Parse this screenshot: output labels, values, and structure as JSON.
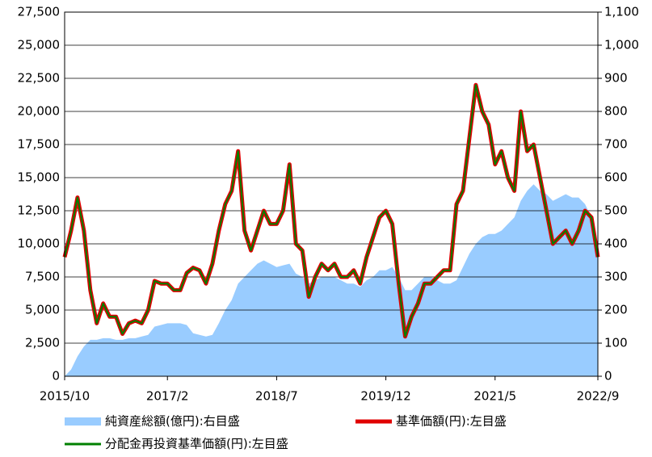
{
  "chart_data": {
    "type": "line",
    "categories": [
      "2015/10",
      null,
      null,
      null,
      null,
      null,
      null,
      null,
      null,
      null,
      null,
      null,
      null,
      null,
      null,
      null,
      "2017/2",
      null,
      null,
      null,
      null,
      null,
      null,
      null,
      null,
      null,
      null,
      null,
      null,
      null,
      null,
      null,
      null,
      "2018/7",
      null,
      null,
      null,
      null,
      null,
      null,
      null,
      null,
      null,
      null,
      null,
      null,
      null,
      null,
      null,
      null,
      "2019/12",
      null,
      null,
      null,
      null,
      null,
      null,
      null,
      null,
      null,
      null,
      null,
      null,
      null,
      null,
      null,
      null,
      "2021/5",
      null,
      null,
      null,
      null,
      null,
      null,
      null,
      null,
      null,
      null,
      null,
      null,
      null,
      null,
      null,
      "2022/9"
    ],
    "series": [
      {
        "name": "純資産総額(億円):右目盛",
        "type": "area",
        "axis": "y2",
        "color": "#99ccff",
        "values": [
          0,
          20,
          60,
          90,
          110,
          110,
          115,
          115,
          110,
          110,
          115,
          115,
          120,
          125,
          150,
          155,
          160,
          160,
          160,
          155,
          130,
          125,
          120,
          125,
          160,
          200,
          230,
          280,
          300,
          320,
          340,
          350,
          340,
          330,
          335,
          340,
          310,
          300,
          280,
          290,
          300,
          300,
          300,
          290,
          280,
          280,
          270,
          290,
          300,
          320,
          320,
          330,
          300,
          260,
          260,
          280,
          300,
          300,
          290,
          280,
          280,
          290,
          330,
          370,
          400,
          420,
          430,
          430,
          440,
          460,
          480,
          530,
          560,
          580,
          560,
          550,
          530,
          540,
          550,
          540,
          540,
          520,
          480,
          400
        ]
      },
      {
        "name": "基準価額(円):左目盛",
        "type": "line",
        "color": "#e00000",
        "values": [
          9000,
          11000,
          13500,
          11000,
          6500,
          4000,
          5500,
          4500,
          4500,
          3200,
          4000,
          4200,
          4000,
          5000,
          7200,
          7000,
          7000,
          6500,
          6500,
          7800,
          8200,
          8000,
          7000,
          8500,
          11000,
          13000,
          14000,
          17000,
          11000,
          9500,
          11000,
          12500,
          11500,
          11500,
          12500,
          16000,
          10000,
          9500,
          6000,
          7500,
          8500,
          8000,
          8500,
          7500,
          7500,
          8000,
          7000,
          9000,
          10500,
          12000,
          12500,
          11500,
          7000,
          3000,
          4500,
          5500,
          7000,
          7000,
          7500,
          8000,
          8000,
          13000,
          14000,
          18000,
          22000,
          20000,
          19000,
          16000,
          17000,
          15000,
          14000,
          20000,
          17000,
          17500,
          15000,
          12500,
          10000,
          10500,
          11000,
          10000,
          11000,
          12500,
          12000,
          9000
        ]
      },
      {
        "name": "分配金再投資基準価額(円):左目盛",
        "type": "line",
        "color": "#008000",
        "values": [
          9000,
          11000,
          13500,
          11000,
          6500,
          4000,
          5500,
          4500,
          4500,
          3200,
          4000,
          4200,
          4000,
          5000,
          7200,
          7000,
          7000,
          6500,
          6500,
          7800,
          8200,
          8000,
          7000,
          8500,
          11000,
          13000,
          14000,
          17000,
          11000,
          9500,
          11000,
          12500,
          11500,
          11500,
          12500,
          16000,
          10000,
          9500,
          6000,
          7500,
          8500,
          8000,
          8500,
          7500,
          7500,
          8000,
          7000,
          9000,
          10500,
          12000,
          12500,
          11500,
          7000,
          3000,
          4500,
          5500,
          7000,
          7000,
          7500,
          8000,
          8000,
          13000,
          14000,
          18000,
          22000,
          20000,
          19000,
          16000,
          17000,
          15000,
          14000,
          20000,
          17000,
          17500,
          15000,
          12500,
          10000,
          10500,
          11000,
          10000,
          11000,
          12500,
          12000,
          9000
        ]
      }
    ],
    "ylim": [
      0,
      27500
    ],
    "yticks": [
      0,
      {
        "value": 2500,
        "label": "2,500"
      },
      {
        "value": 5000,
        "label": "5,000"
      },
      {
        "value": 7500,
        "label": "7,500"
      },
      {
        "value": 10000,
        "label": "10,000"
      },
      {
        "value": 12500,
        "label": "12,500"
      },
      {
        "value": 15000,
        "label": "15,000"
      },
      {
        "value": 17500,
        "label": "17,500"
      },
      {
        "value": 20000,
        "label": "20,000"
      },
      {
        "value": 22500,
        "label": "22,500"
      },
      {
        "value": 25000,
        "label": "25,000"
      },
      {
        "value": 27500,
        "label": "27,500"
      }
    ],
    "y2lim": [
      0,
      1100
    ],
    "y2ticks": [
      0,
      100,
      200,
      300,
      400,
      500,
      600,
      700,
      800,
      900,
      {
        "value": 1000,
        "label": "1,000"
      },
      {
        "value": 1100,
        "label": "1,100"
      }
    ],
    "grid": true,
    "legend": "bottom"
  }
}
